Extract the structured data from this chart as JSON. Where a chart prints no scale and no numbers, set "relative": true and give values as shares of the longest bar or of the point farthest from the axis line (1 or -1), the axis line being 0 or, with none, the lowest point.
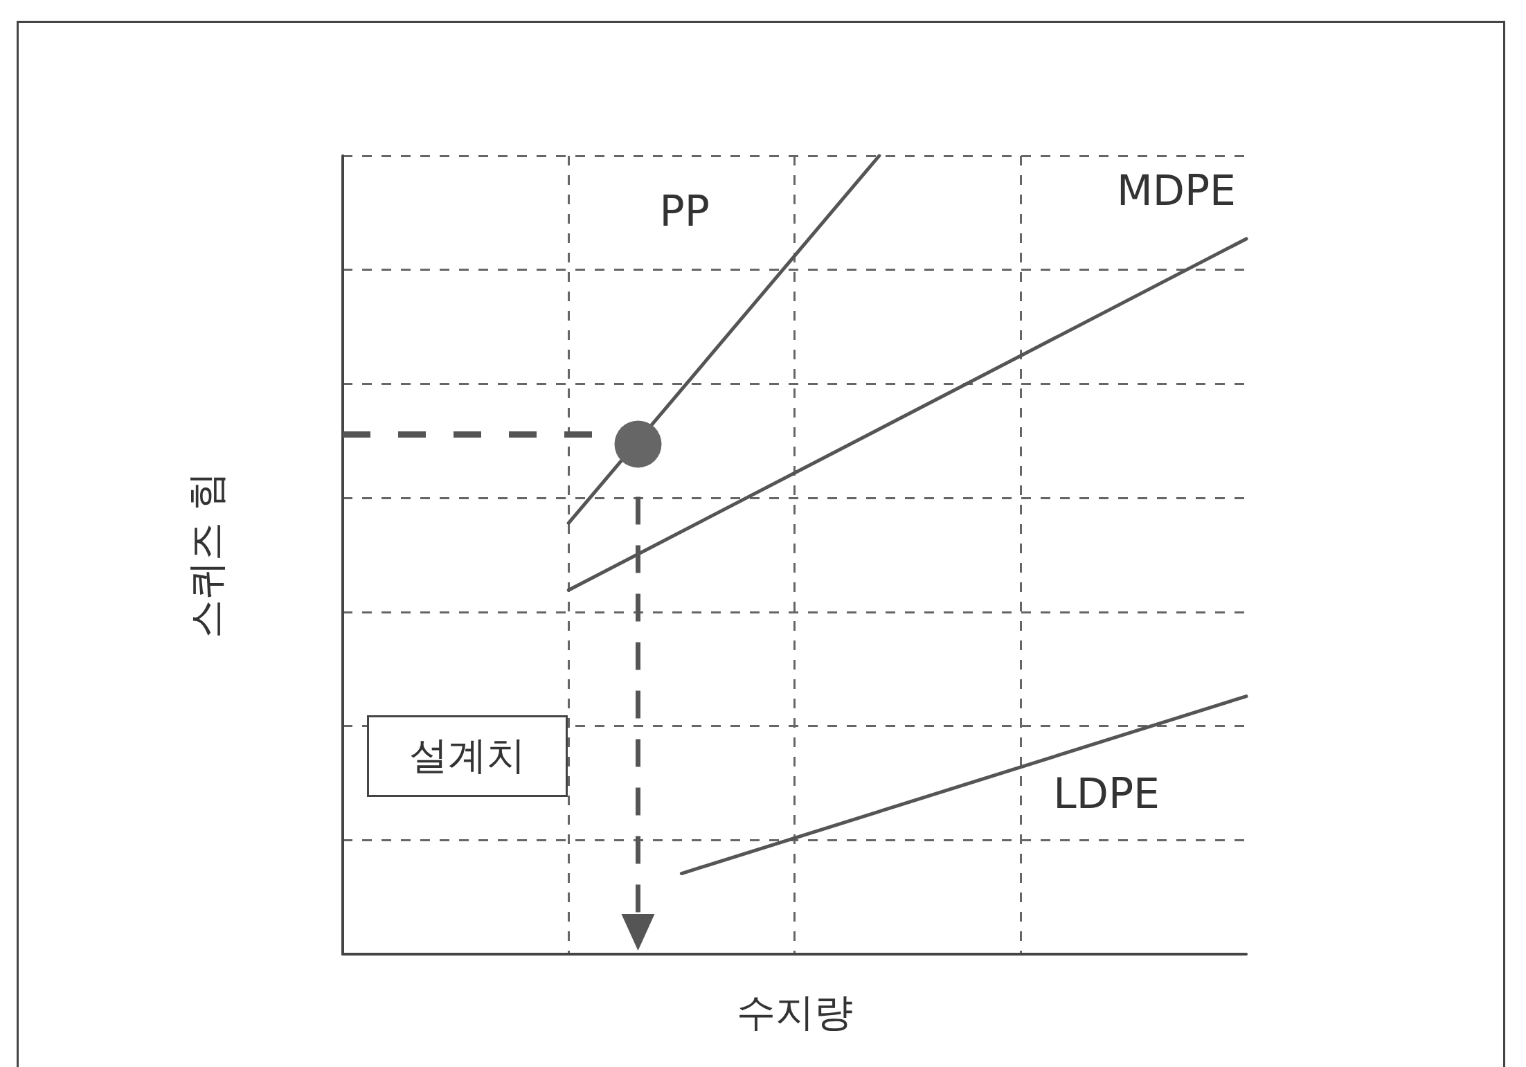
{
  "chart_data": {
    "type": "line",
    "relative": true,
    "xlabel": "수지량",
    "ylabel": "스퀴즈 힘",
    "categories": [
      null,
      null,
      null,
      null,
      null,
      null,
      null,
      null,
      null,
      null,
      null,
      null,
      null,
      null,
      null,
      null,
      null,
      null,
      null,
      null,
      null,
      null,
      null,
      null,
      null,
      null,
      null,
      null,
      null,
      null,
      null,
      null,
      null
    ],
    "series": [
      {
        "name": "PP",
        "color": "#555555",
        "values": [
          null,
          null,
          null,
          null,
          null,
          null,
          null,
          null,
          0.54,
          null,
          null,
          null,
          null,
          null,
          null,
          null,
          null,
          null,
          null,
          1,
          null,
          null,
          null,
          null,
          null,
          null,
          null,
          null,
          null,
          null,
          null,
          null,
          null
        ]
      },
      {
        "name": "MDPE",
        "color": "#555555",
        "values": [
          null,
          null,
          null,
          null,
          null,
          null,
          null,
          null,
          0.456,
          null,
          null,
          null,
          null,
          null,
          null,
          null,
          null,
          null,
          null,
          null,
          null,
          null,
          null,
          null,
          null,
          null,
          null,
          null,
          null,
          null,
          null,
          null,
          0.896
        ]
      },
      {
        "name": "LDPE",
        "color": "#555555",
        "values": [
          null,
          null,
          null,
          null,
          null,
          null,
          null,
          null,
          null,
          null,
          null,
          null,
          0.101,
          null,
          null,
          null,
          null,
          null,
          null,
          null,
          null,
          null,
          null,
          null,
          null,
          null,
          null,
          null,
          null,
          null,
          null,
          null,
          0.323
        ]
      }
    ],
    "ref_lines": [
      {
        "axis": "y",
        "value": 0.651,
        "line_style": "dashed",
        "color": "#555555"
      }
    ],
    "annotations": [
      "설계치"
    ],
    "grid": true,
    "marker": "none",
    "line_style": "solid",
    "legend": false
  }
}
